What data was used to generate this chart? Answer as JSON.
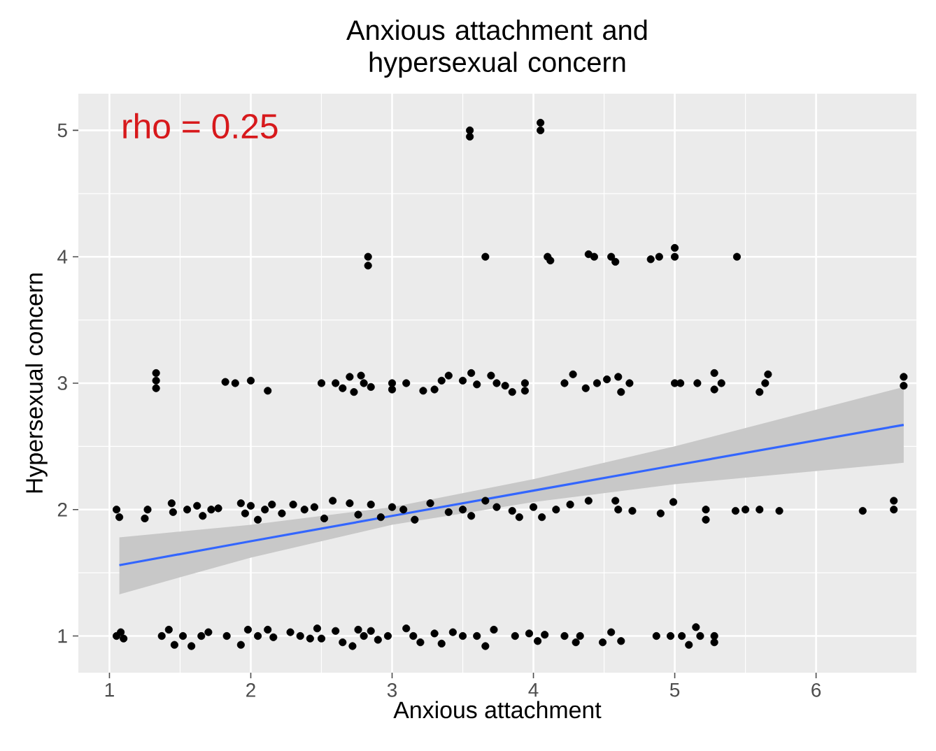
{
  "chart_data": {
    "type": "scatter",
    "title": "Anxious attachment and hypersexual concern",
    "xlabel": "Anxious attachment",
    "ylabel": "Hypersexual concern",
    "annotations": [
      "rho = 0.25"
    ],
    "xlim": [
      0.78,
      6.71
    ],
    "ylim": [
      0.71,
      5.29
    ],
    "xticks": [
      1,
      2,
      3,
      4,
      5,
      6
    ],
    "yticks": [
      1,
      2,
      3,
      4,
      5
    ],
    "grid": true,
    "series": [
      {
        "color": "#000000",
        "marker": "circle",
        "x": [
          3.55,
          3.55,
          4.05,
          4.05,
          2.83,
          2.83,
          3.66,
          4.1,
          4.12,
          4.39,
          4.43,
          4.55,
          4.58,
          4.83,
          4.89,
          5.0,
          5.0,
          5.44,
          1.33,
          1.33,
          1.33,
          1.82,
          1.89,
          2.0,
          2.12,
          2.5,
          2.6,
          2.65,
          2.7,
          2.73,
          2.78,
          2.8,
          2.85,
          3.0,
          3.0,
          3.1,
          3.22,
          3.3,
          3.35,
          3.4,
          3.5,
          3.56,
          3.6,
          3.7,
          3.74,
          3.8,
          3.85,
          3.94,
          3.94,
          4.22,
          4.28,
          4.37,
          4.45,
          4.52,
          4.6,
          4.62,
          4.68,
          5.0,
          5.04,
          5.16,
          5.28,
          5.28,
          5.33,
          5.6,
          5.64,
          5.66,
          6.62,
          6.62,
          1.05,
          1.07,
          1.27,
          1.25,
          1.44,
          1.45,
          1.55,
          1.62,
          1.66,
          1.72,
          1.77,
          1.93,
          1.96,
          2.0,
          2.05,
          2.1,
          2.15,
          2.22,
          2.3,
          2.38,
          2.45,
          2.52,
          2.58,
          2.7,
          2.76,
          2.85,
          2.92,
          3.0,
          3.08,
          3.16,
          3.27,
          3.4,
          3.5,
          3.56,
          3.66,
          3.74,
          3.85,
          3.9,
          4.0,
          4.06,
          4.16,
          4.26,
          4.39,
          4.58,
          4.6,
          4.7,
          4.9,
          4.99,
          5.22,
          5.22,
          5.43,
          5.5,
          5.6,
          5.74,
          6.33,
          6.55,
          6.55,
          1.05,
          1.08,
          1.1,
          1.37,
          1.42,
          1.46,
          1.52,
          1.58,
          1.65,
          1.7,
          1.83,
          1.93,
          1.98,
          2.05,
          2.12,
          2.16,
          2.28,
          2.35,
          2.42,
          2.47,
          2.5,
          2.6,
          2.65,
          2.72,
          2.76,
          2.8,
          2.85,
          2.9,
          2.97,
          3.1,
          3.15,
          3.2,
          3.3,
          3.35,
          3.43,
          3.5,
          3.6,
          3.66,
          3.72,
          3.87,
          3.97,
          4.03,
          4.08,
          4.22,
          4.3,
          4.33,
          4.49,
          4.55,
          4.62,
          4.87,
          4.97,
          5.05,
          5.1,
          5.15,
          5.18,
          5.28,
          5.28
        ],
        "values": [
          5.0,
          4.95,
          5.06,
          5.0,
          4.0,
          3.93,
          4.0,
          4.0,
          3.97,
          4.02,
          4.0,
          4.0,
          3.96,
          3.98,
          4.0,
          4.07,
          4.0,
          4.0,
          3.08,
          3.02,
          2.96,
          3.01,
          3.0,
          3.02,
          2.94,
          3.0,
          3.0,
          2.96,
          3.05,
          2.93,
          3.06,
          3.0,
          2.97,
          3.0,
          2.95,
          3.0,
          2.94,
          2.95,
          3.02,
          3.06,
          3.02,
          3.08,
          2.99,
          3.06,
          3.0,
          2.98,
          2.93,
          3.0,
          2.94,
          3.0,
          3.07,
          2.96,
          3.0,
          3.03,
          3.05,
          2.93,
          3.0,
          3.0,
          3.0,
          3.0,
          3.08,
          2.95,
          3.0,
          2.93,
          3.0,
          3.07,
          3.05,
          2.98,
          2.0,
          1.94,
          2.0,
          1.93,
          2.05,
          1.98,
          2.0,
          2.03,
          1.95,
          2.0,
          2.01,
          2.05,
          1.97,
          2.03,
          1.92,
          2.0,
          2.04,
          1.97,
          2.04,
          2.0,
          2.02,
          1.93,
          2.07,
          2.05,
          1.96,
          2.04,
          1.94,
          2.02,
          2.0,
          1.92,
          2.05,
          1.98,
          2.0,
          1.95,
          2.07,
          2.02,
          1.99,
          1.94,
          2.02,
          1.94,
          2.0,
          2.04,
          2.07,
          2.07,
          2.0,
          1.99,
          1.97,
          2.06,
          2.0,
          1.92,
          1.99,
          2.0,
          2.0,
          1.99,
          1.99,
          2.07,
          2.0,
          1.0,
          1.03,
          0.98,
          1.0,
          1.05,
          0.93,
          1.0,
          0.92,
          1.0,
          1.03,
          1.0,
          0.93,
          1.05,
          1.0,
          1.05,
          0.99,
          1.03,
          1.0,
          0.98,
          1.06,
          0.98,
          1.04,
          0.95,
          0.92,
          1.05,
          1.0,
          1.04,
          0.97,
          1.0,
          1.06,
          1.0,
          0.95,
          1.02,
          0.94,
          1.03,
          1.0,
          1.0,
          0.92,
          1.05,
          1.0,
          1.02,
          0.96,
          1.01,
          1.0,
          0.95,
          1.0,
          0.95,
          1.03,
          0.96,
          1.0,
          1.0,
          1.0,
          0.93,
          1.07,
          1.0,
          1.0,
          0.95
        ]
      },
      {
        "type": "line",
        "color": "#3366ff",
        "marker": "none",
        "x": [
          1.07,
          2,
          3,
          4,
          5,
          6.62
        ],
        "values": [
          1.56,
          1.75,
          1.95,
          2.15,
          2.35,
          2.67
        ],
        "lower": [
          1.33,
          1.62,
          1.88,
          2.06,
          2.2,
          2.37
        ],
        "upper": [
          1.78,
          1.88,
          2.02,
          2.24,
          2.5,
          2.97
        ]
      }
    ]
  }
}
